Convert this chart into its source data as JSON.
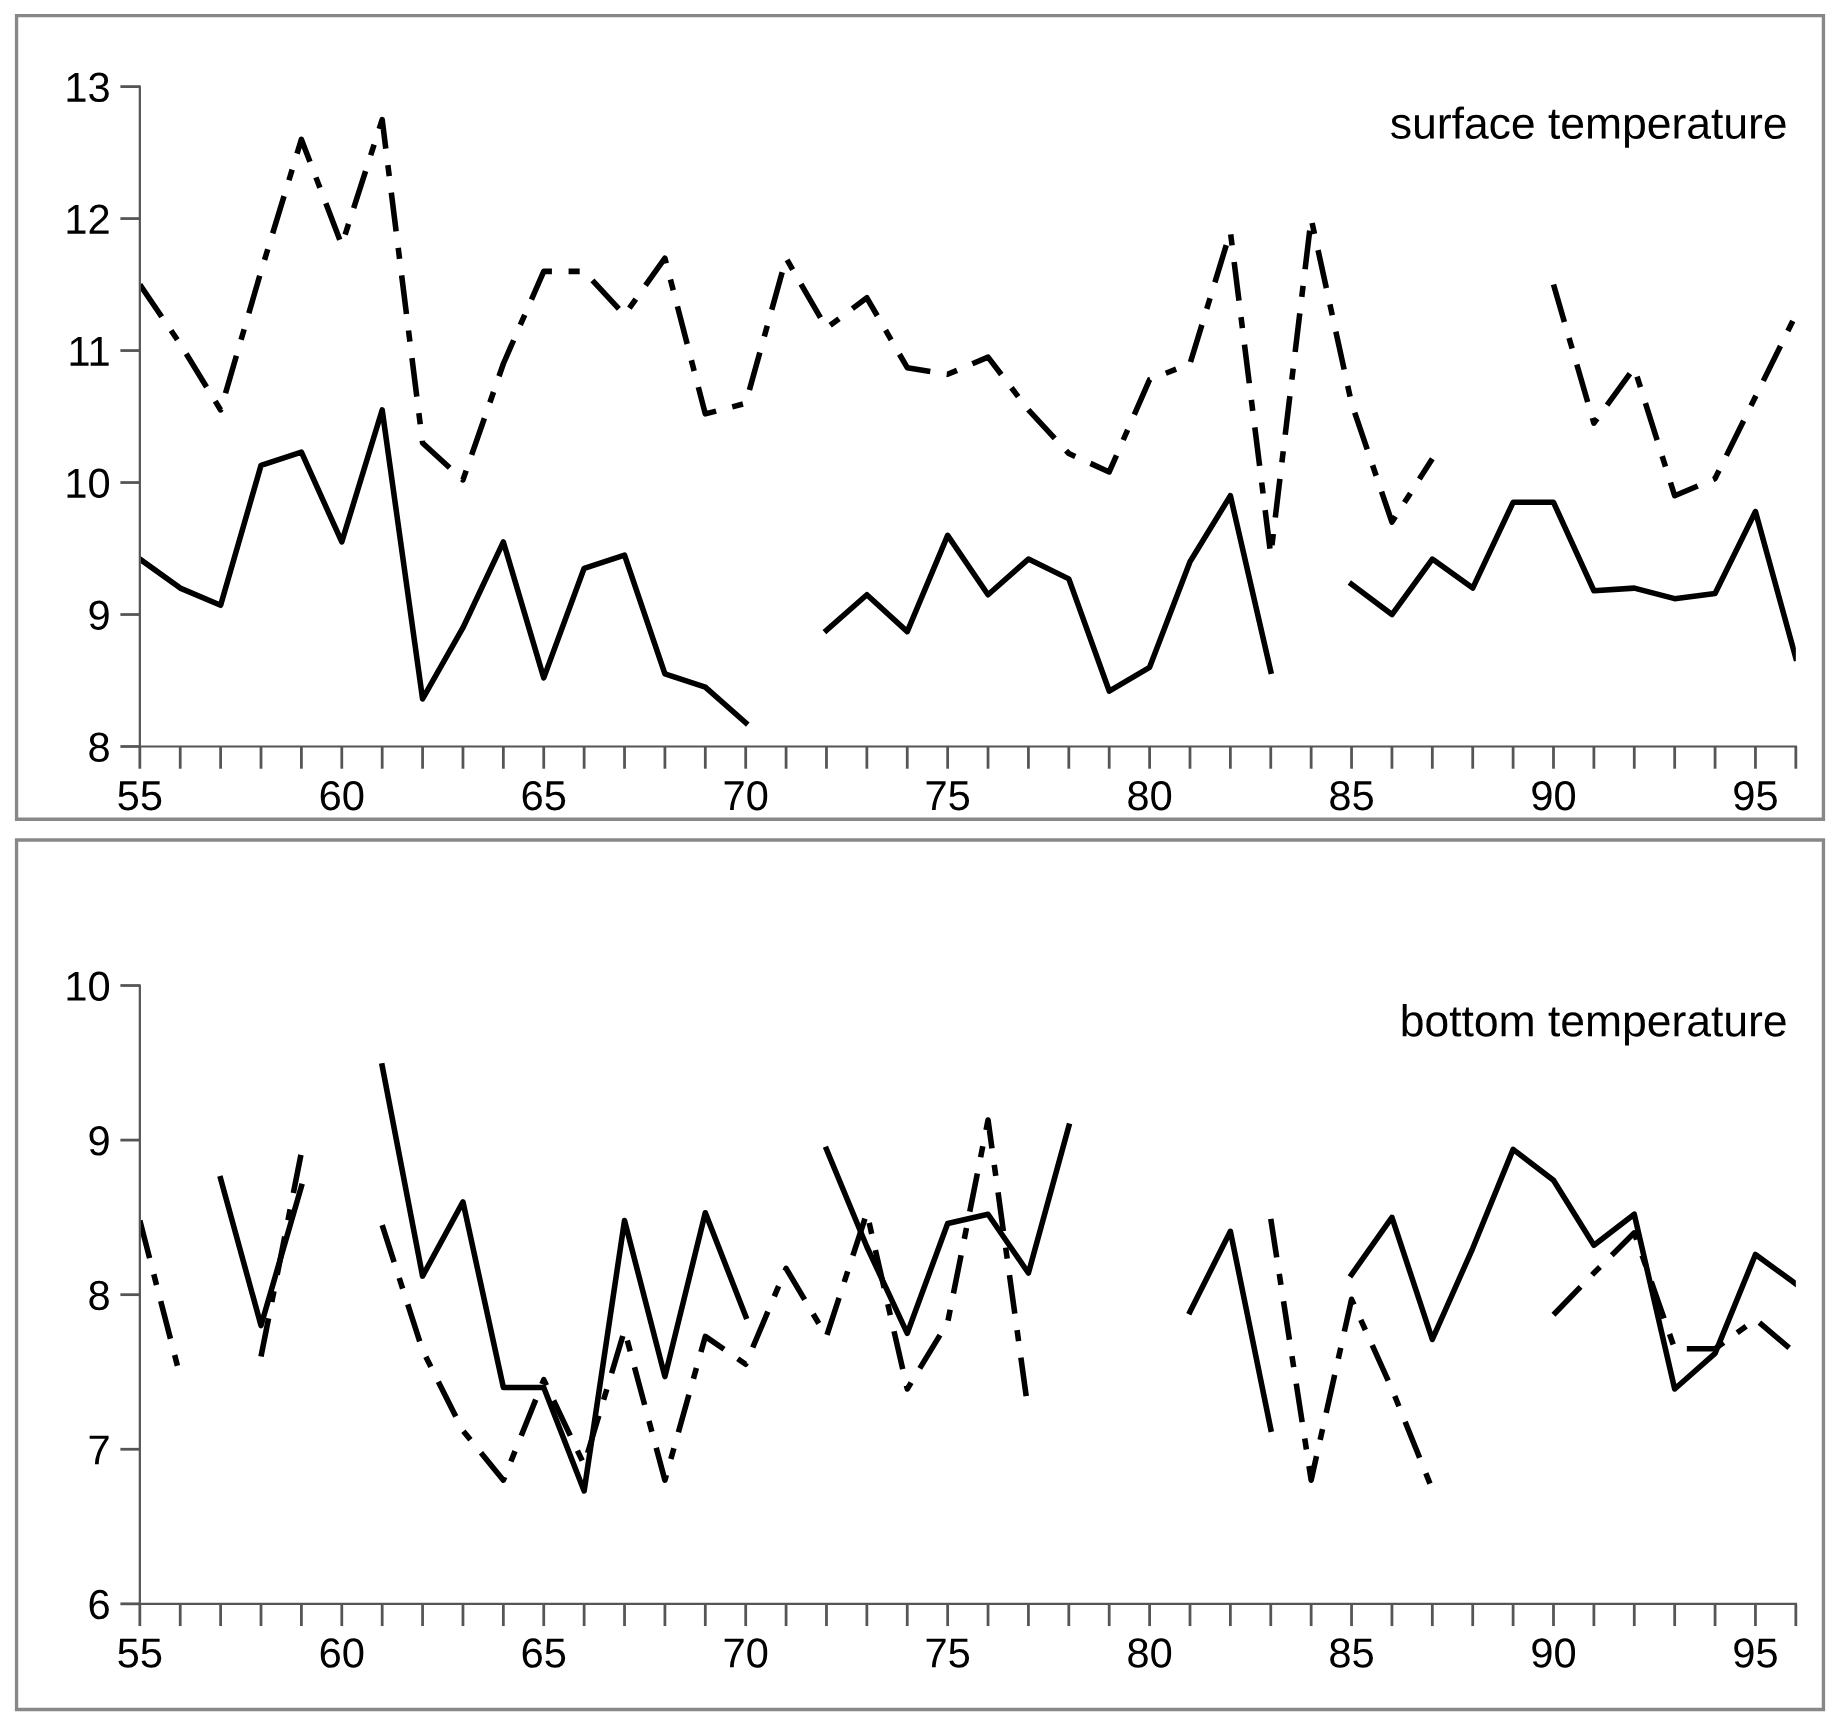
{
  "chart_data": [
    {
      "type": "line",
      "title": "surface temperature",
      "x": [
        55,
        56,
        57,
        58,
        59,
        60,
        61,
        62,
        63,
        64,
        65,
        66,
        67,
        68,
        69,
        70,
        71,
        72,
        73,
        74,
        75,
        76,
        77,
        78,
        79,
        80,
        81,
        82,
        83,
        84,
        85,
        86,
        87,
        88,
        89,
        90,
        91,
        92,
        93,
        94,
        95,
        96
      ],
      "series": [
        {
          "color": "#000000",
          "line_style": "solid",
          "values": [
            9.42,
            9.2,
            9.07,
            10.13,
            10.23,
            9.55,
            10.55,
            8.36,
            8.9,
            9.55,
            8.52,
            9.35,
            9.45,
            8.55,
            8.45,
            8.18,
            null,
            8.88,
            9.15,
            8.87,
            9.6,
            9.15,
            9.42,
            9.27,
            8.42,
            8.6,
            9.4,
            9.9,
            8.57,
            null,
            9.23,
            9.0,
            9.42,
            9.2,
            9.85,
            9.85,
            9.18,
            9.2,
            9.12,
            9.16,
            9.78,
            8.67
          ]
        },
        {
          "color": "#000000",
          "line_style": "dashed",
          "values": [
            11.5,
            11.05,
            10.55,
            11.6,
            12.6,
            11.8,
            12.75,
            10.3,
            10.02,
            10.9,
            11.6,
            11.6,
            11.27,
            11.7,
            10.52,
            10.6,
            11.7,
            11.17,
            11.4,
            10.87,
            10.82,
            10.95,
            10.55,
            10.22,
            10.08,
            10.78,
            10.9,
            11.9,
            9.45,
            12.0,
            10.6,
            9.7,
            10.18,
            null,
            null,
            11.5,
            10.45,
            10.87,
            9.9,
            10.03,
            10.65,
            11.27
          ]
        }
      ],
      "xlim": [
        55,
        96
      ],
      "xticks": [
        55,
        {
          "value": 56,
          "label": null
        },
        {
          "value": 57,
          "label": null
        },
        {
          "value": 58,
          "label": null
        },
        {
          "value": 59,
          "label": null
        },
        60,
        {
          "value": 61,
          "label": null
        },
        {
          "value": 62,
          "label": null
        },
        {
          "value": 63,
          "label": null
        },
        {
          "value": 64,
          "label": null
        },
        65,
        {
          "value": 66,
          "label": null
        },
        {
          "value": 67,
          "label": null
        },
        {
          "value": 68,
          "label": null
        },
        {
          "value": 69,
          "label": null
        },
        70,
        {
          "value": 71,
          "label": null
        },
        {
          "value": 72,
          "label": null
        },
        {
          "value": 73,
          "label": null
        },
        {
          "value": 74,
          "label": null
        },
        75,
        {
          "value": 76,
          "label": null
        },
        {
          "value": 77,
          "label": null
        },
        {
          "value": 78,
          "label": null
        },
        {
          "value": 79,
          "label": null
        },
        80,
        {
          "value": 81,
          "label": null
        },
        {
          "value": 82,
          "label": null
        },
        {
          "value": 83,
          "label": null
        },
        {
          "value": 84,
          "label": null
        },
        85,
        {
          "value": 86,
          "label": null
        },
        {
          "value": 87,
          "label": null
        },
        {
          "value": 88,
          "label": null
        },
        {
          "value": 89,
          "label": null
        },
        90,
        {
          "value": 91,
          "label": null
        },
        {
          "value": 92,
          "label": null
        },
        {
          "value": 93,
          "label": null
        },
        {
          "value": 94,
          "label": null
        },
        95,
        {
          "value": 96,
          "label": null
        }
      ],
      "ylim": [
        8,
        13
      ],
      "yticks": [
        8,
        9,
        10,
        11,
        12,
        13
      ],
      "grid": false,
      "legend": false
    },
    {
      "type": "line",
      "title": "bottom temperature",
      "x": [
        55,
        56,
        57,
        58,
        59,
        60,
        61,
        62,
        63,
        64,
        65,
        66,
        67,
        68,
        69,
        70,
        71,
        72,
        73,
        74,
        75,
        76,
        77,
        78,
        79,
        80,
        81,
        82,
        83,
        84,
        85,
        86,
        87,
        88,
        89,
        90,
        91,
        92,
        93,
        94,
        95,
        96
      ],
      "series": [
        {
          "color": "#000000",
          "line_style": "solid",
          "values": [
            null,
            null,
            8.75,
            7.8,
            8.7,
            null,
            9.48,
            8.12,
            8.6,
            7.4,
            7.4,
            6.73,
            8.48,
            7.47,
            8.53,
            7.86,
            null,
            8.94,
            8.31,
            7.75,
            8.46,
            8.52,
            8.14,
            9.09,
            null,
            null,
            7.89,
            8.41,
            7.13,
            null,
            8.13,
            8.5,
            7.71,
            8.3,
            8.94,
            8.74,
            8.32,
            8.52,
            7.39,
            7.62,
            8.26,
            8.07
          ]
        },
        {
          "color": "#000000",
          "line_style": "dashed",
          "values": [
            8.48,
            7.47,
            null,
            7.6,
            8.92,
            null,
            8.45,
            7.64,
            7.12,
            6.8,
            7.45,
            6.9,
            7.77,
            6.8,
            7.73,
            7.55,
            8.17,
            7.73,
            8.53,
            7.39,
            7.82,
            9.13,
            7.24,
            null,
            null,
            null,
            null,
            null,
            8.49,
            6.8,
            7.97,
            7.39,
            6.74,
            null,
            null,
            7.87,
            8.14,
            8.4,
            7.65,
            7.65,
            7.84,
            7.62
          ]
        }
      ],
      "xlim": [
        55,
        96
      ],
      "xticks": [
        55,
        {
          "value": 56,
          "label": null
        },
        {
          "value": 57,
          "label": null
        },
        {
          "value": 58,
          "label": null
        },
        {
          "value": 59,
          "label": null
        },
        60,
        {
          "value": 61,
          "label": null
        },
        {
          "value": 62,
          "label": null
        },
        {
          "value": 63,
          "label": null
        },
        {
          "value": 64,
          "label": null
        },
        65,
        {
          "value": 66,
          "label": null
        },
        {
          "value": 67,
          "label": null
        },
        {
          "value": 68,
          "label": null
        },
        {
          "value": 69,
          "label": null
        },
        70,
        {
          "value": 71,
          "label": null
        },
        {
          "value": 72,
          "label": null
        },
        {
          "value": 73,
          "label": null
        },
        {
          "value": 74,
          "label": null
        },
        75,
        {
          "value": 76,
          "label": null
        },
        {
          "value": 77,
          "label": null
        },
        {
          "value": 78,
          "label": null
        },
        {
          "value": 79,
          "label": null
        },
        80,
        {
          "value": 81,
          "label": null
        },
        {
          "value": 82,
          "label": null
        },
        {
          "value": 83,
          "label": null
        },
        {
          "value": 84,
          "label": null
        },
        85,
        {
          "value": 86,
          "label": null
        },
        {
          "value": 87,
          "label": null
        },
        {
          "value": 88,
          "label": null
        },
        {
          "value": 89,
          "label": null
        },
        90,
        {
          "value": 91,
          "label": null
        },
        {
          "value": 92,
          "label": null
        },
        {
          "value": 93,
          "label": null
        },
        {
          "value": 94,
          "label": null
        },
        95,
        {
          "value": 96,
          "label": null
        }
      ],
      "ylim": [
        6,
        10
      ],
      "yticks": [
        6,
        7,
        8,
        9,
        10
      ],
      "grid": false,
      "legend": false
    }
  ]
}
